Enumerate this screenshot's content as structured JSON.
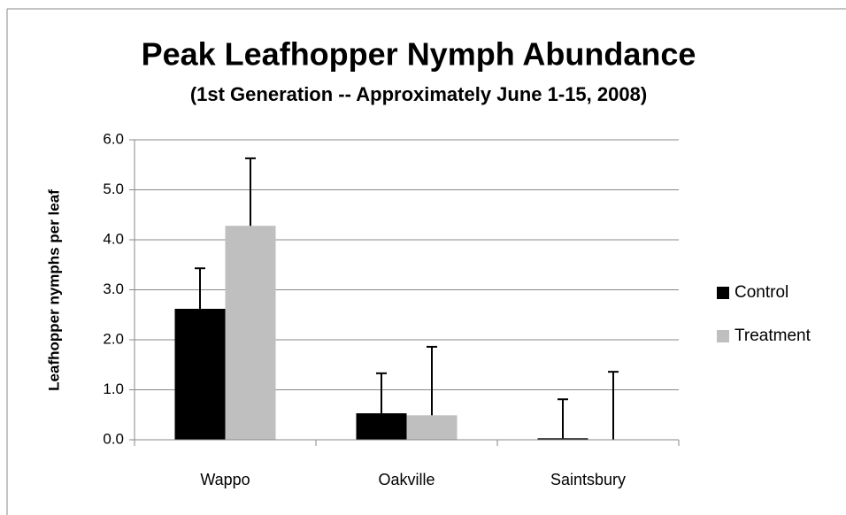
{
  "chart_data": {
    "type": "bar",
    "title": "Peak Leafhopper Nymph Abundance",
    "subtitle": "(1st Generation -- Approximately June 1-15, 2008)",
    "y_label": "Leafhopper nymphs per leaf",
    "categories": [
      "Wappo",
      "Oakville",
      "Saintsbury"
    ],
    "series": [
      {
        "name": "Control",
        "color": "#000000",
        "values": [
          2.62,
          0.53,
          0.03
        ],
        "errors": [
          0.81,
          0.8,
          0.78
        ]
      },
      {
        "name": "Treatment",
        "color": "#bfbfbf",
        "values": [
          4.28,
          0.49,
          0.0
        ],
        "errors": [
          1.35,
          1.37,
          1.36
        ]
      }
    ],
    "ylim": [
      0,
      6
    ],
    "yticks": [
      {
        "value": 0,
        "label": "0.0"
      },
      {
        "value": 1,
        "label": "1.0"
      },
      {
        "value": 2,
        "label": "2.0"
      },
      {
        "value": 3,
        "label": "3.0"
      },
      {
        "value": 4,
        "label": "4.0"
      },
      {
        "value": 5,
        "label": "5.0"
      },
      {
        "value": 6,
        "label": "6.0"
      }
    ],
    "grid": true,
    "legend": "right"
  }
}
